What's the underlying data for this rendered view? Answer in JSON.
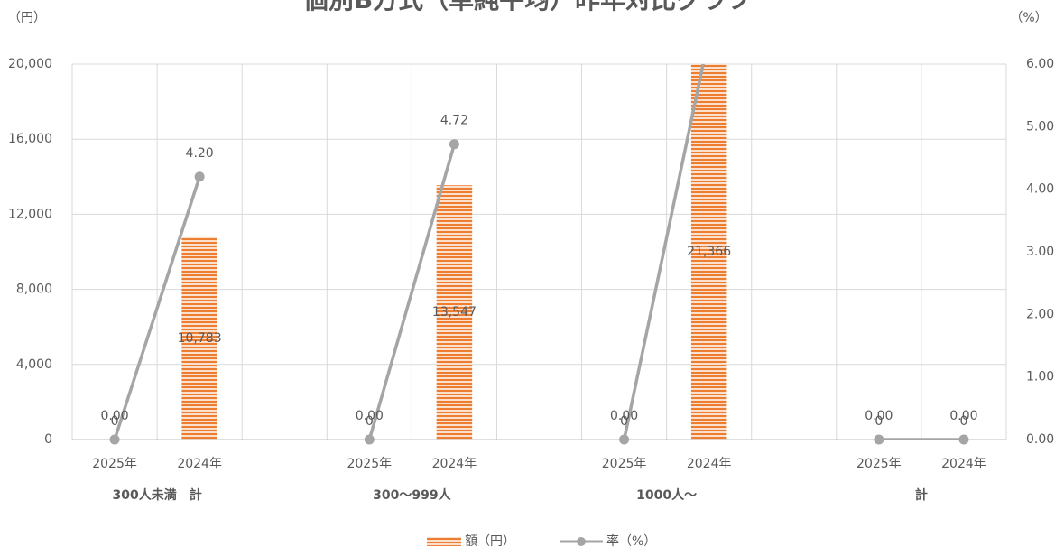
{
  "chart_data": {
    "type": "bar",
    "title": "個別B方式（単純平均）昨年対比グラフ",
    "left_unit": "（円）",
    "right_unit": "（%）",
    "year_labels": [
      "2025年",
      "2024年"
    ],
    "groups": [
      {
        "label": "300人未満　計",
        "amounts": [
          0,
          10783
        ],
        "amount_labels": [
          "0",
          "10,783"
        ],
        "rates": [
          0.0,
          4.2
        ],
        "rate_labels": [
          "0.00",
          "4.20"
        ]
      },
      {
        "label": "300〜999人",
        "amounts": [
          0,
          13547
        ],
        "amount_labels": [
          "0",
          "13,547"
        ],
        "rates": [
          0.0,
          4.72
        ],
        "rate_labels": [
          "0.00",
          "4.72"
        ]
      },
      {
        "label": "1000人〜",
        "amounts": [
          0,
          21366
        ],
        "amount_labels": [
          "0",
          "21,366"
        ],
        "rates": [
          0.0,
          6.45
        ],
        "rate_labels": [
          "0.00",
          ""
        ]
      },
      {
        "label": "計",
        "amounts": [
          0,
          0
        ],
        "amount_labels": [
          "0",
          "0"
        ],
        "rates": [
          0.0,
          0.0
        ],
        "rate_labels": [
          "0.00",
          "0.00"
        ]
      }
    ],
    "left_ylim": [
      0,
      20000
    ],
    "left_ticks": [
      "0",
      "4,000",
      "8,000",
      "12,000",
      "16,000",
      "20,000"
    ],
    "right_ylim": [
      0,
      6
    ],
    "right_ticks": [
      "0.00",
      "1.00",
      "2.00",
      "3.00",
      "4.00",
      "5.00",
      "6.00"
    ],
    "grid": true,
    "legend_position": "bottom",
    "series": [
      {
        "name": "額（円）",
        "color": "#ED7D31"
      },
      {
        "name": "率（%）",
        "color": "#A5A5A5"
      }
    ]
  }
}
